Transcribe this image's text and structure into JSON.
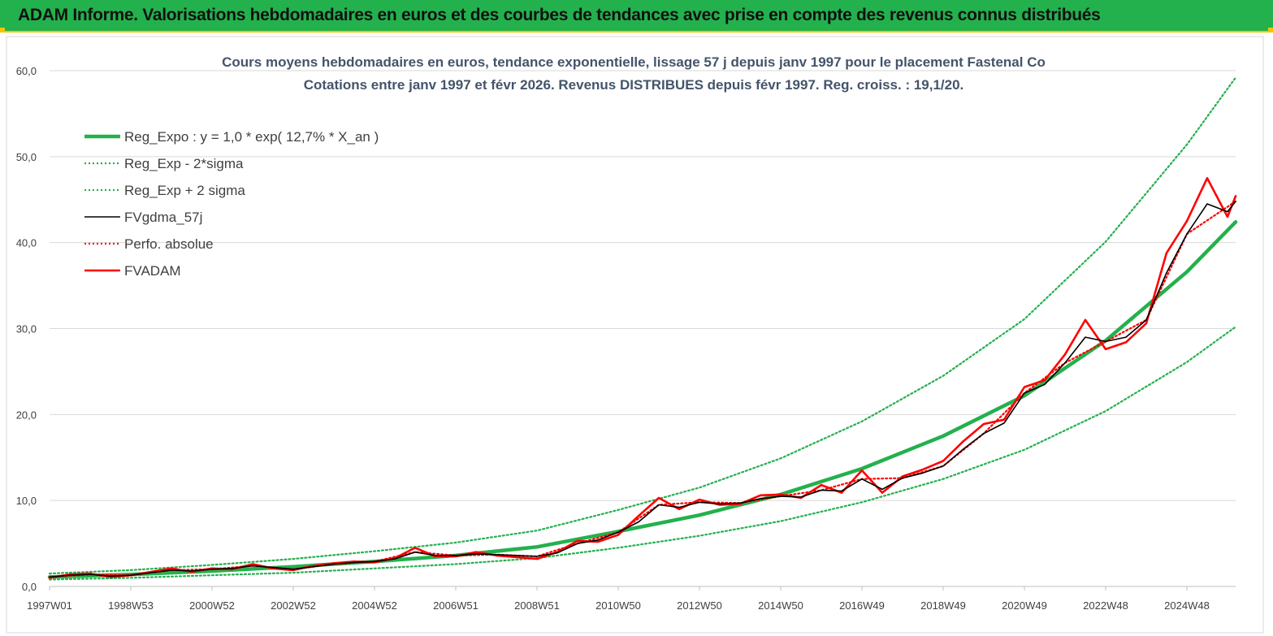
{
  "header": {
    "title": "ADAM Informe. Valorisations hebdomadaires en euros et des courbes de tendances avec prise en compte des revenus connus distribués"
  },
  "chart_data": {
    "type": "line",
    "title": "Cours moyens hebdomadaires en euros, tendance exponentielle, lissage 57 j depuis janv 1997 pour le placement Fastenal Co",
    "subtitle": "Cotations entre janv 1997 et févr 2026. Revenus DISTRIBUES depuis févr 1997. Reg. croiss. : 19,1/20.",
    "xlabel": "",
    "ylabel": "",
    "ylim": [
      0,
      60
    ],
    "xlim": [
      1997.0,
      2026.2
    ],
    "yticks": [
      0,
      10,
      20,
      30,
      40,
      50,
      60
    ],
    "ytick_labels": [
      "0,0",
      "10,0",
      "20,0",
      "30,0",
      "40,0",
      "50,0",
      "60,0"
    ],
    "xticks": [
      {
        "x": 1997.0,
        "label": "1997W01"
      },
      {
        "x": 1999.0,
        "label": "1998W53"
      },
      {
        "x": 2001.0,
        "label": "2000W52"
      },
      {
        "x": 2003.0,
        "label": "2002W52"
      },
      {
        "x": 2005.0,
        "label": "2004W52"
      },
      {
        "x": 2007.0,
        "label": "2006W51"
      },
      {
        "x": 2009.0,
        "label": "2008W51"
      },
      {
        "x": 2011.0,
        "label": "2010W50"
      },
      {
        "x": 2013.0,
        "label": "2012W50"
      },
      {
        "x": 2015.0,
        "label": "2014W50"
      },
      {
        "x": 2017.0,
        "label": "2016W49"
      },
      {
        "x": 2019.0,
        "label": "2018W49"
      },
      {
        "x": 2021.0,
        "label": "2020W49"
      },
      {
        "x": 2023.0,
        "label": "2022W48"
      },
      {
        "x": 2025.0,
        "label": "2024W48"
      }
    ],
    "grid": {
      "horizontal": true,
      "vertical": false
    },
    "legend_position": "top-left",
    "series": [
      {
        "name": "Reg_Expo : y = 1,0 * exp( 12,7% *  X_an )",
        "color": "#23b14d",
        "style": "solid-thick",
        "x": [
          1997.0,
          1999.0,
          2001.0,
          2003.0,
          2005.0,
          2007.0,
          2009.0,
          2011.0,
          2013.0,
          2015.0,
          2017.0,
          2019.0,
          2021.0,
          2023.0,
          2025.0,
          2026.2
        ],
        "values": [
          1.1,
          1.4,
          1.8,
          2.3,
          2.9,
          3.6,
          4.6,
          6.4,
          8.3,
          10.7,
          13.7,
          17.5,
          22.2,
          28.6,
          36.6,
          42.4
        ]
      },
      {
        "name": "Reg_Exp - 2*sigma",
        "color": "#23b14d",
        "style": "dotted",
        "x": [
          1997.0,
          1999.0,
          2001.0,
          2003.0,
          2005.0,
          2007.0,
          2009.0,
          2011.0,
          2013.0,
          2015.0,
          2017.0,
          2019.0,
          2021.0,
          2023.0,
          2025.0,
          2026.2
        ],
        "values": [
          0.8,
          1.0,
          1.3,
          1.6,
          2.1,
          2.6,
          3.3,
          4.5,
          5.9,
          7.6,
          9.8,
          12.5,
          15.9,
          20.4,
          26.1,
          30.2
        ]
      },
      {
        "name": "Reg_Exp + 2 sigma",
        "color": "#23b14d",
        "style": "dotted",
        "x": [
          1997.0,
          1999.0,
          2001.0,
          2003.0,
          2005.0,
          2007.0,
          2009.0,
          2011.0,
          2013.0,
          2015.0,
          2017.0,
          2019.0,
          2021.0,
          2023.0,
          2025.0,
          2026.2
        ],
        "values": [
          1.5,
          1.9,
          2.5,
          3.2,
          4.1,
          5.1,
          6.5,
          8.9,
          11.5,
          14.9,
          19.2,
          24.5,
          31.1,
          40.1,
          51.4,
          59.2
        ]
      },
      {
        "name": "FVgdma_57j",
        "color": "#000000",
        "style": "solid",
        "x": [
          1997.0,
          1997.5,
          1998.0,
          1998.5,
          1999.0,
          1999.5,
          2000.0,
          2000.5,
          2001.0,
          2001.5,
          2002.0,
          2002.5,
          2003.0,
          2003.5,
          2004.0,
          2004.5,
          2005.0,
          2005.5,
          2006.0,
          2006.5,
          2007.0,
          2007.5,
          2008.0,
          2008.5,
          2009.0,
          2009.5,
          2010.0,
          2010.5,
          2011.0,
          2011.5,
          2012.0,
          2012.5,
          2013.0,
          2013.5,
          2014.0,
          2014.5,
          2015.0,
          2015.5,
          2016.0,
          2016.5,
          2017.0,
          2017.5,
          2018.0,
          2018.5,
          2019.0,
          2019.5,
          2020.0,
          2020.5,
          2021.0,
          2021.5,
          2022.0,
          2022.5,
          2023.0,
          2023.5,
          2024.0,
          2024.5,
          2025.0,
          2025.5,
          2026.0,
          2026.2
        ],
        "values": [
          1.1,
          1.3,
          1.4,
          1.2,
          1.3,
          1.6,
          1.9,
          1.8,
          2.0,
          2.1,
          2.4,
          2.2,
          2.0,
          2.3,
          2.6,
          2.8,
          2.9,
          3.2,
          4.0,
          3.6,
          3.6,
          3.8,
          3.7,
          3.6,
          3.5,
          3.9,
          5.0,
          5.4,
          6.3,
          7.5,
          9.5,
          9.2,
          9.8,
          9.6,
          9.7,
          10.2,
          10.5,
          10.4,
          11.2,
          11.1,
          12.5,
          11.3,
          12.6,
          13.2,
          14.0,
          16.0,
          17.8,
          19.0,
          22.5,
          23.5,
          26.0,
          29.0,
          28.5,
          29.0,
          31.0,
          36.5,
          41.0,
          44.5,
          43.6,
          44.8
        ]
      },
      {
        "name": "Perfo. absolue",
        "color": "#ff0000",
        "style": "dotted",
        "x": [
          1997.0,
          1998.0,
          1999.0,
          2000.0,
          2001.0,
          2002.0,
          2003.0,
          2004.0,
          2005.0,
          2006.0,
          2007.0,
          2008.0,
          2009.0,
          2010.0,
          2011.0,
          2012.0,
          2013.0,
          2014.0,
          2015.0,
          2016.0,
          2017.0,
          2018.0,
          2019.0,
          2020.0,
          2021.0,
          2022.0,
          2023.0,
          2024.0,
          2025.0,
          2026.2
        ],
        "values": [
          1.1,
          1.4,
          1.3,
          1.9,
          2.0,
          2.4,
          2.0,
          2.6,
          2.9,
          4.0,
          3.6,
          3.7,
          3.5,
          5.0,
          6.3,
          9.5,
          9.8,
          9.7,
          10.5,
          11.2,
          12.5,
          12.6,
          14.0,
          17.8,
          22.5,
          26.0,
          28.5,
          31.0,
          41.0,
          44.8
        ]
      },
      {
        "name": "FVADAM",
        "color": "#ff0000",
        "style": "solid-thick",
        "x": [
          1997.0,
          1997.5,
          1998.0,
          1998.5,
          1999.0,
          1999.5,
          2000.0,
          2000.5,
          2001.0,
          2001.5,
          2002.0,
          2002.5,
          2003.0,
          2003.5,
          2004.0,
          2004.5,
          2005.0,
          2005.5,
          2006.0,
          2006.5,
          2007.0,
          2007.5,
          2008.0,
          2008.5,
          2009.0,
          2009.5,
          2010.0,
          2010.5,
          2011.0,
          2011.5,
          2012.0,
          2012.5,
          2013.0,
          2013.5,
          2014.0,
          2014.5,
          2015.0,
          2015.5,
          2016.0,
          2016.5,
          2017.0,
          2017.5,
          2018.0,
          2018.5,
          2019.0,
          2019.5,
          2020.0,
          2020.5,
          2021.0,
          2021.5,
          2022.0,
          2022.5,
          2023.0,
          2023.5,
          2024.0,
          2024.5,
          2025.0,
          2025.5,
          2026.0,
          2026.2
        ],
        "values": [
          1.0,
          1.4,
          1.5,
          1.1,
          1.3,
          1.7,
          2.1,
          1.7,
          2.1,
          2.0,
          2.6,
          2.1,
          1.9,
          2.4,
          2.7,
          2.9,
          2.8,
          3.3,
          4.5,
          3.5,
          3.5,
          4.0,
          3.6,
          3.4,
          3.2,
          4.0,
          5.3,
          5.2,
          6.0,
          8.2,
          10.3,
          9.0,
          10.1,
          9.5,
          9.6,
          10.6,
          10.7,
          10.3,
          11.8,
          10.9,
          13.5,
          10.9,
          12.8,
          13.6,
          14.6,
          16.9,
          18.9,
          19.4,
          23.2,
          24.0,
          27.0,
          31.0,
          27.6,
          28.4,
          30.6,
          38.8,
          42.5,
          47.5,
          43.0,
          45.4
        ]
      }
    ]
  }
}
